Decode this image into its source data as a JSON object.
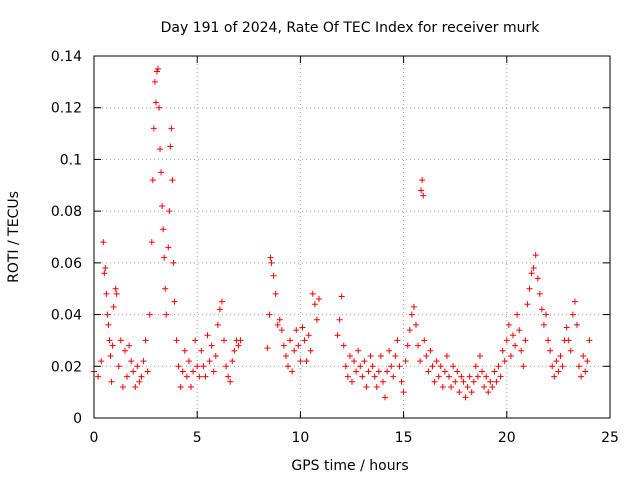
{
  "chart_data": {
    "type": "scatter",
    "title": "Day 191 of 2024, Rate Of TEC Index for receiver murk",
    "xlabel": "GPS time / hours",
    "ylabel": "ROTI / TECUs",
    "xlim": [
      0,
      25
    ],
    "ylim": [
      0,
      0.14
    ],
    "x_ticks": [
      0,
      5,
      10,
      15,
      20,
      25
    ],
    "x_tick_labels": [
      "0",
      "5",
      "10",
      "15",
      "20",
      "25"
    ],
    "y_ticks": [
      0,
      0.02,
      0.04,
      0.06,
      0.08,
      0.1,
      0.12,
      0.14
    ],
    "y_tick_labels": [
      "0",
      "0.02",
      "0.04",
      "0.06",
      "0.08",
      "0.1",
      "0.12",
      "0.14"
    ],
    "grid": true,
    "marker": "+",
    "series": [
      {
        "name": "ROTI",
        "color": "#ff0000",
        "points": [
          [
            0.0,
            0.018
          ],
          [
            0.2,
            0.016
          ],
          [
            0.35,
            0.022
          ],
          [
            0.45,
            0.068
          ],
          [
            0.5,
            0.056
          ],
          [
            0.55,
            0.058
          ],
          [
            0.6,
            0.048
          ],
          [
            0.65,
            0.04
          ],
          [
            0.7,
            0.036
          ],
          [
            0.75,
            0.03
          ],
          [
            0.8,
            0.024
          ],
          [
            0.85,
            0.014
          ],
          [
            0.9,
            0.028
          ],
          [
            0.95,
            0.043
          ],
          [
            1.05,
            0.05
          ],
          [
            1.1,
            0.048
          ],
          [
            1.2,
            0.02
          ],
          [
            1.3,
            0.03
          ],
          [
            1.4,
            0.012
          ],
          [
            1.5,
            0.026
          ],
          [
            1.6,
            0.016
          ],
          [
            1.7,
            0.028
          ],
          [
            1.8,
            0.022
          ],
          [
            1.9,
            0.018
          ],
          [
            2.0,
            0.012
          ],
          [
            2.1,
            0.02
          ],
          [
            2.2,
            0.014
          ],
          [
            2.3,
            0.016
          ],
          [
            2.4,
            0.022
          ],
          [
            2.5,
            0.03
          ],
          [
            2.6,
            0.018
          ],
          [
            2.7,
            0.04
          ],
          [
            2.8,
            0.068
          ],
          [
            2.85,
            0.092
          ],
          [
            2.9,
            0.112
          ],
          [
            2.95,
            0.13
          ],
          [
            3.0,
            0.122
          ],
          [
            3.05,
            0.134
          ],
          [
            3.1,
            0.135
          ],
          [
            3.15,
            0.12
          ],
          [
            3.2,
            0.104
          ],
          [
            3.25,
            0.095
          ],
          [
            3.3,
            0.082
          ],
          [
            3.35,
            0.073
          ],
          [
            3.4,
            0.062
          ],
          [
            3.45,
            0.05
          ],
          [
            3.5,
            0.04
          ],
          [
            3.6,
            0.066
          ],
          [
            3.65,
            0.08
          ],
          [
            3.7,
            0.105
          ],
          [
            3.75,
            0.112
          ],
          [
            3.8,
            0.092
          ],
          [
            3.85,
            0.06
          ],
          [
            3.9,
            0.045
          ],
          [
            4.0,
            0.03
          ],
          [
            4.1,
            0.02
          ],
          [
            4.2,
            0.012
          ],
          [
            4.3,
            0.018
          ],
          [
            4.4,
            0.026
          ],
          [
            4.5,
            0.016
          ],
          [
            4.6,
            0.022
          ],
          [
            4.7,
            0.012
          ],
          [
            4.8,
            0.018
          ],
          [
            4.9,
            0.03
          ],
          [
            5.0,
            0.02
          ],
          [
            5.1,
            0.016
          ],
          [
            5.2,
            0.026
          ],
          [
            5.3,
            0.02
          ],
          [
            5.4,
            0.016
          ],
          [
            5.5,
            0.032
          ],
          [
            5.6,
            0.022
          ],
          [
            5.7,
            0.028
          ],
          [
            5.8,
            0.018
          ],
          [
            5.9,
            0.024
          ],
          [
            6.0,
            0.036
          ],
          [
            6.1,
            0.042
          ],
          [
            6.2,
            0.045
          ],
          [
            6.3,
            0.03
          ],
          [
            6.4,
            0.02
          ],
          [
            6.5,
            0.016
          ],
          [
            6.6,
            0.014
          ],
          [
            6.7,
            0.022
          ],
          [
            6.8,
            0.026
          ],
          [
            6.9,
            0.03
          ],
          [
            7.0,
            0.028
          ],
          [
            7.1,
            0.03
          ],
          [
            8.4,
            0.027
          ],
          [
            8.5,
            0.04
          ],
          [
            8.55,
            0.062
          ],
          [
            8.6,
            0.06
          ],
          [
            8.7,
            0.055
          ],
          [
            8.8,
            0.048
          ],
          [
            8.9,
            0.036
          ],
          [
            9.0,
            0.038
          ],
          [
            9.1,
            0.034
          ],
          [
            9.2,
            0.028
          ],
          [
            9.3,
            0.024
          ],
          [
            9.4,
            0.02
          ],
          [
            9.5,
            0.03
          ],
          [
            9.6,
            0.018
          ],
          [
            9.7,
            0.026
          ],
          [
            9.8,
            0.034
          ],
          [
            9.9,
            0.028
          ],
          [
            10.0,
            0.022
          ],
          [
            10.1,
            0.035
          ],
          [
            10.2,
            0.03
          ],
          [
            10.3,
            0.022
          ],
          [
            10.4,
            0.032
          ],
          [
            10.5,
            0.026
          ],
          [
            10.6,
            0.048
          ],
          [
            10.7,
            0.044
          ],
          [
            10.8,
            0.038
          ],
          [
            10.9,
            0.046
          ],
          [
            11.8,
            0.032
          ],
          [
            11.9,
            0.038
          ],
          [
            12.0,
            0.047
          ],
          [
            12.1,
            0.028
          ],
          [
            12.2,
            0.02
          ],
          [
            12.3,
            0.016
          ],
          [
            12.4,
            0.024
          ],
          [
            12.5,
            0.014
          ],
          [
            12.6,
            0.022
          ],
          [
            12.7,
            0.018
          ],
          [
            12.8,
            0.026
          ],
          [
            12.9,
            0.02
          ],
          [
            13.0,
            0.016
          ],
          [
            13.1,
            0.022
          ],
          [
            13.2,
            0.012
          ],
          [
            13.3,
            0.018
          ],
          [
            13.4,
            0.024
          ],
          [
            13.5,
            0.02
          ],
          [
            13.6,
            0.016
          ],
          [
            13.7,
            0.012
          ],
          [
            13.8,
            0.018
          ],
          [
            13.9,
            0.024
          ],
          [
            14.0,
            0.014
          ],
          [
            14.1,
            0.008
          ],
          [
            14.2,
            0.018
          ],
          [
            14.3,
            0.026
          ],
          [
            14.4,
            0.02
          ],
          [
            14.5,
            0.016
          ],
          [
            14.6,
            0.024
          ],
          [
            14.7,
            0.03
          ],
          [
            14.8,
            0.02
          ],
          [
            14.9,
            0.014
          ],
          [
            15.0,
            0.01
          ],
          [
            15.1,
            0.022
          ],
          [
            15.2,
            0.028
          ],
          [
            15.3,
            0.034
          ],
          [
            15.4,
            0.04
          ],
          [
            15.5,
            0.043
          ],
          [
            15.6,
            0.036
          ],
          [
            15.7,
            0.028
          ],
          [
            15.8,
            0.022
          ],
          [
            15.85,
            0.088
          ],
          [
            15.9,
            0.092
          ],
          [
            15.95,
            0.086
          ],
          [
            16.0,
            0.03
          ],
          [
            16.1,
            0.024
          ],
          [
            16.2,
            0.018
          ],
          [
            16.3,
            0.026
          ],
          [
            16.4,
            0.02
          ],
          [
            16.5,
            0.014
          ],
          [
            16.6,
            0.022
          ],
          [
            16.7,
            0.016
          ],
          [
            16.8,
            0.02
          ],
          [
            16.9,
            0.012
          ],
          [
            17.0,
            0.018
          ],
          [
            17.1,
            0.024
          ],
          [
            17.2,
            0.016
          ],
          [
            17.3,
            0.012
          ],
          [
            17.4,
            0.02
          ],
          [
            17.5,
            0.014
          ],
          [
            17.6,
            0.018
          ],
          [
            17.7,
            0.01
          ],
          [
            17.8,
            0.016
          ],
          [
            17.9,
            0.014
          ],
          [
            18.0,
            0.008
          ],
          [
            18.1,
            0.012
          ],
          [
            18.2,
            0.016
          ],
          [
            18.3,
            0.01
          ],
          [
            18.4,
            0.014
          ],
          [
            18.5,
            0.02
          ],
          [
            18.6,
            0.016
          ],
          [
            18.7,
            0.024
          ],
          [
            18.8,
            0.018
          ],
          [
            18.9,
            0.012
          ],
          [
            19.0,
            0.016
          ],
          [
            19.1,
            0.01
          ],
          [
            19.2,
            0.014
          ],
          [
            19.3,
            0.012
          ],
          [
            19.4,
            0.018
          ],
          [
            19.5,
            0.014
          ],
          [
            19.6,
            0.02
          ],
          [
            19.7,
            0.016
          ],
          [
            19.8,
            0.026
          ],
          [
            19.9,
            0.022
          ],
          [
            20.0,
            0.03
          ],
          [
            20.1,
            0.036
          ],
          [
            20.2,
            0.024
          ],
          [
            20.3,
            0.032
          ],
          [
            20.4,
            0.028
          ],
          [
            20.5,
            0.04
          ],
          [
            20.6,
            0.034
          ],
          [
            20.7,
            0.026
          ],
          [
            20.8,
            0.02
          ],
          [
            20.9,
            0.03
          ],
          [
            21.0,
            0.044
          ],
          [
            21.1,
            0.05
          ],
          [
            21.2,
            0.056
          ],
          [
            21.3,
            0.058
          ],
          [
            21.4,
            0.063
          ],
          [
            21.5,
            0.054
          ],
          [
            21.6,
            0.048
          ],
          [
            21.7,
            0.042
          ],
          [
            21.8,
            0.036
          ],
          [
            21.9,
            0.04
          ],
          [
            22.0,
            0.03
          ],
          [
            22.1,
            0.026
          ],
          [
            22.2,
            0.02
          ],
          [
            22.3,
            0.016
          ],
          [
            22.4,
            0.022
          ],
          [
            22.5,
            0.018
          ],
          [
            22.6,
            0.024
          ],
          [
            22.7,
            0.02
          ],
          [
            22.8,
            0.03
          ],
          [
            22.9,
            0.035
          ],
          [
            23.0,
            0.03
          ],
          [
            23.1,
            0.026
          ],
          [
            23.2,
            0.04
          ],
          [
            23.3,
            0.045
          ],
          [
            23.4,
            0.036
          ],
          [
            23.5,
            0.02
          ],
          [
            23.6,
            0.016
          ],
          [
            23.7,
            0.024
          ],
          [
            23.8,
            0.018
          ],
          [
            23.9,
            0.022
          ],
          [
            24.0,
            0.03
          ]
        ]
      }
    ]
  }
}
